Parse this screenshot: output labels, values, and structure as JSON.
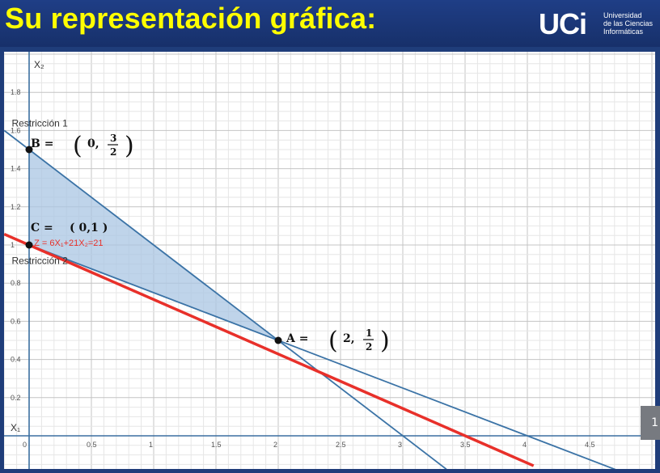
{
  "slide": {
    "title": "Su representación gráfica:",
    "side_button": "1"
  },
  "logo": {
    "mark": "UCi",
    "line1": "Universidad",
    "line2": "de las Ciencias",
    "line3": "Informáticas"
  },
  "chart_data": {
    "type": "line",
    "xlabel": "X₁",
    "ylabel": "X₂",
    "xlim": [
      0,
      5
    ],
    "ylim": [
      -0.15,
      1.95
    ],
    "x_ticks": [
      "0",
      "0.5",
      "1",
      "1.5",
      "2",
      "2.5",
      "3",
      "3.5",
      "4",
      "4.5"
    ],
    "x_tick_values": [
      0,
      0.5,
      1,
      1.5,
      2,
      2.5,
      3,
      3.5,
      4,
      4.5
    ],
    "y_ticks": [
      "0.2",
      "0.4",
      "0.6",
      "0.8",
      "1",
      "1.2",
      "1.4",
      "1.6",
      "1.8"
    ],
    "y_tick_values": [
      0.2,
      0.4,
      0.6,
      0.8,
      1.0,
      1.2,
      1.4,
      1.6,
      1.8
    ],
    "grid": true,
    "colors": {
      "constraint": "#3b73a6",
      "objective": "#e8302a",
      "region": "#aac6e3"
    },
    "lines": [
      {
        "name": "Restricción 1",
        "points": [
          [
            -0.2,
            1.6
          ],
          [
            3.35,
            -0.175
          ]
        ]
      },
      {
        "name": "Restricción 2",
        "points": [
          [
            0,
            1.0
          ],
          [
            4.8,
            -0.2
          ]
        ]
      },
      {
        "name": "Z = 6X₁+21X₂=21",
        "points": [
          [
            -0.2,
            1.057
          ],
          [
            4.05,
            -0.157
          ]
        ],
        "objective": true
      }
    ],
    "feasible_region": [
      [
        0,
        1.0
      ],
      [
        0,
        1.5
      ],
      [
        2,
        0.5
      ]
    ],
    "points": [
      {
        "id": "A",
        "x": 2,
        "y": 0.5,
        "label": "A =",
        "coord_x": "2,",
        "frac_num": "1",
        "frac_den": "2"
      },
      {
        "id": "B",
        "x": 0,
        "y": 1.5,
        "label": "B =",
        "coord_x": "0,",
        "frac_num": "3",
        "frac_den": "2"
      },
      {
        "id": "C",
        "x": 0,
        "y": 1.0,
        "label": "C =",
        "coord_text": "( 0,1 )"
      }
    ],
    "annotations": [
      {
        "text": "Restricción 1",
        "x": -0.14,
        "y": 1.62
      },
      {
        "text": "Restricción 2",
        "x": -0.14,
        "y": 0.9
      },
      {
        "text": "Z = 6X₁+21X₂=21",
        "x": 0.04,
        "y": 1.0
      }
    ]
  }
}
